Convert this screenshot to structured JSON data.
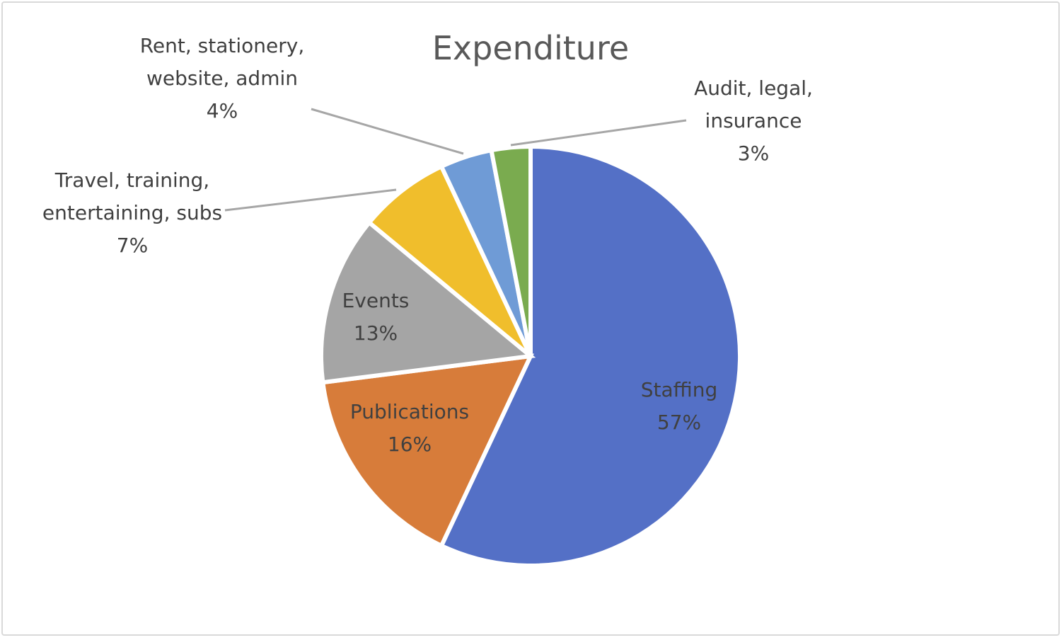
{
  "chart_data": {
    "type": "pie",
    "title": "Expenditure",
    "start_angle": "top",
    "direction": "clockwise",
    "legend": "none",
    "slices": [
      {
        "label_lines": [
          "Staffing"
        ],
        "percent_text": "57%",
        "value": 57,
        "color": "#5470c6"
      },
      {
        "label_lines": [
          "Publications"
        ],
        "percent_text": "16%",
        "value": 16,
        "color": "#d77c3a"
      },
      {
        "label_lines": [
          "Events"
        ],
        "percent_text": "13%",
        "value": 13,
        "color": "#a5a5a5"
      },
      {
        "label_lines": [
          "Travel, training,",
          "entertaining, subs"
        ],
        "percent_text": "7%",
        "value": 7,
        "color": "#f0be2c"
      },
      {
        "label_lines": [
          "Rent, stationery,",
          "website, admin"
        ],
        "percent_text": "4%",
        "value": 4,
        "color": "#6f9bd6"
      },
      {
        "label_lines": [
          "Audit, legal,",
          "insurance"
        ],
        "percent_text": "3%",
        "value": 3,
        "color": "#7aab4f"
      }
    ]
  }
}
